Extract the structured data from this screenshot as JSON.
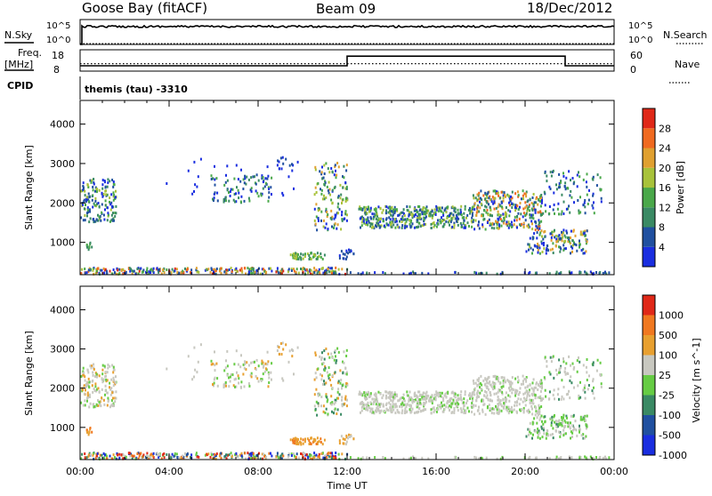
{
  "header": {
    "station": "Goose Bay (fitACF)",
    "beam": "Beam 09",
    "date": "18/Dec/2012"
  },
  "strip_labels": {
    "n_sky": "N.Sky",
    "n_search": "N.Search",
    "freq_top": "Freq.",
    "freq_bottom": "[MHz]",
    "nave": "Nave",
    "cpid": "CPID",
    "cpid_text": "themis (tau) -3310",
    "noise_ticks_left": [
      "10^5",
      "10^0"
    ],
    "noise_ticks_right": [
      "10^5",
      "10^0"
    ],
    "freq_ticks_left": [
      "18",
      "8"
    ],
    "freq_ticks_right": [
      "60",
      "0"
    ]
  },
  "colors": {
    "power": [
      "#1a2ee0",
      "#2050a0",
      "#3a8a64",
      "#4aa84a",
      "#a8c23a",
      "#e0a030",
      "#f06a20",
      "#e02818"
    ],
    "velocity": [
      "#1a2ee0",
      "#2050a0",
      "#3a8a64",
      "#66cc44",
      "#c8c8c0",
      "#e8a030",
      "#f07820",
      "#e02818"
    ]
  },
  "chart_data": [
    {
      "type": "line",
      "name": "noise",
      "xlim": [
        0,
        24
      ],
      "ylabel_left": "N.Sky",
      "ylabel_right": "N.Search",
      "level_sky": 0.72,
      "level_search_dotted": 0.0
    },
    {
      "type": "line",
      "name": "frequency",
      "xlim": [
        0,
        24
      ],
      "ylim": [
        8,
        18
      ],
      "freq_segments": [
        {
          "x0": 0,
          "x1": 12.0,
          "y": 10.5
        },
        {
          "x0": 12.0,
          "x1": 21.8,
          "y": 15.0
        },
        {
          "x0": 21.8,
          "x1": 24,
          "y": 10.5
        }
      ],
      "nave_level": 0.35
    },
    {
      "type": "heatmap",
      "name": "power",
      "xlabel": "",
      "ylabel": "Slant Range [km]",
      "xlim": [
        0,
        24
      ],
      "ylim": [
        180,
        4600
      ],
      "yticks": [
        1000,
        2000,
        3000,
        4000
      ],
      "colorbar_label": "Power [dB]",
      "colorbar_ticks": [
        "4",
        "8",
        "12",
        "16",
        "20",
        "24",
        "28"
      ]
    },
    {
      "type": "heatmap",
      "name": "velocity",
      "xlabel": "Time UT",
      "ylabel": "Slant Range [km]",
      "xlim": [
        0,
        24
      ],
      "ylim": [
        180,
        4600
      ],
      "xticks": [
        "00:00",
        "04:00",
        "08:00",
        "12:00",
        "16:00",
        "20:00",
        "00:00"
      ],
      "yticks": [
        1000,
        2000,
        3000,
        4000
      ],
      "colorbar_label": "Velocity [m s^-1]",
      "colorbar_ticks": [
        "1000",
        "500",
        "100",
        "25",
        "-25",
        "-100",
        "-500",
        "-1000"
      ]
    }
  ]
}
